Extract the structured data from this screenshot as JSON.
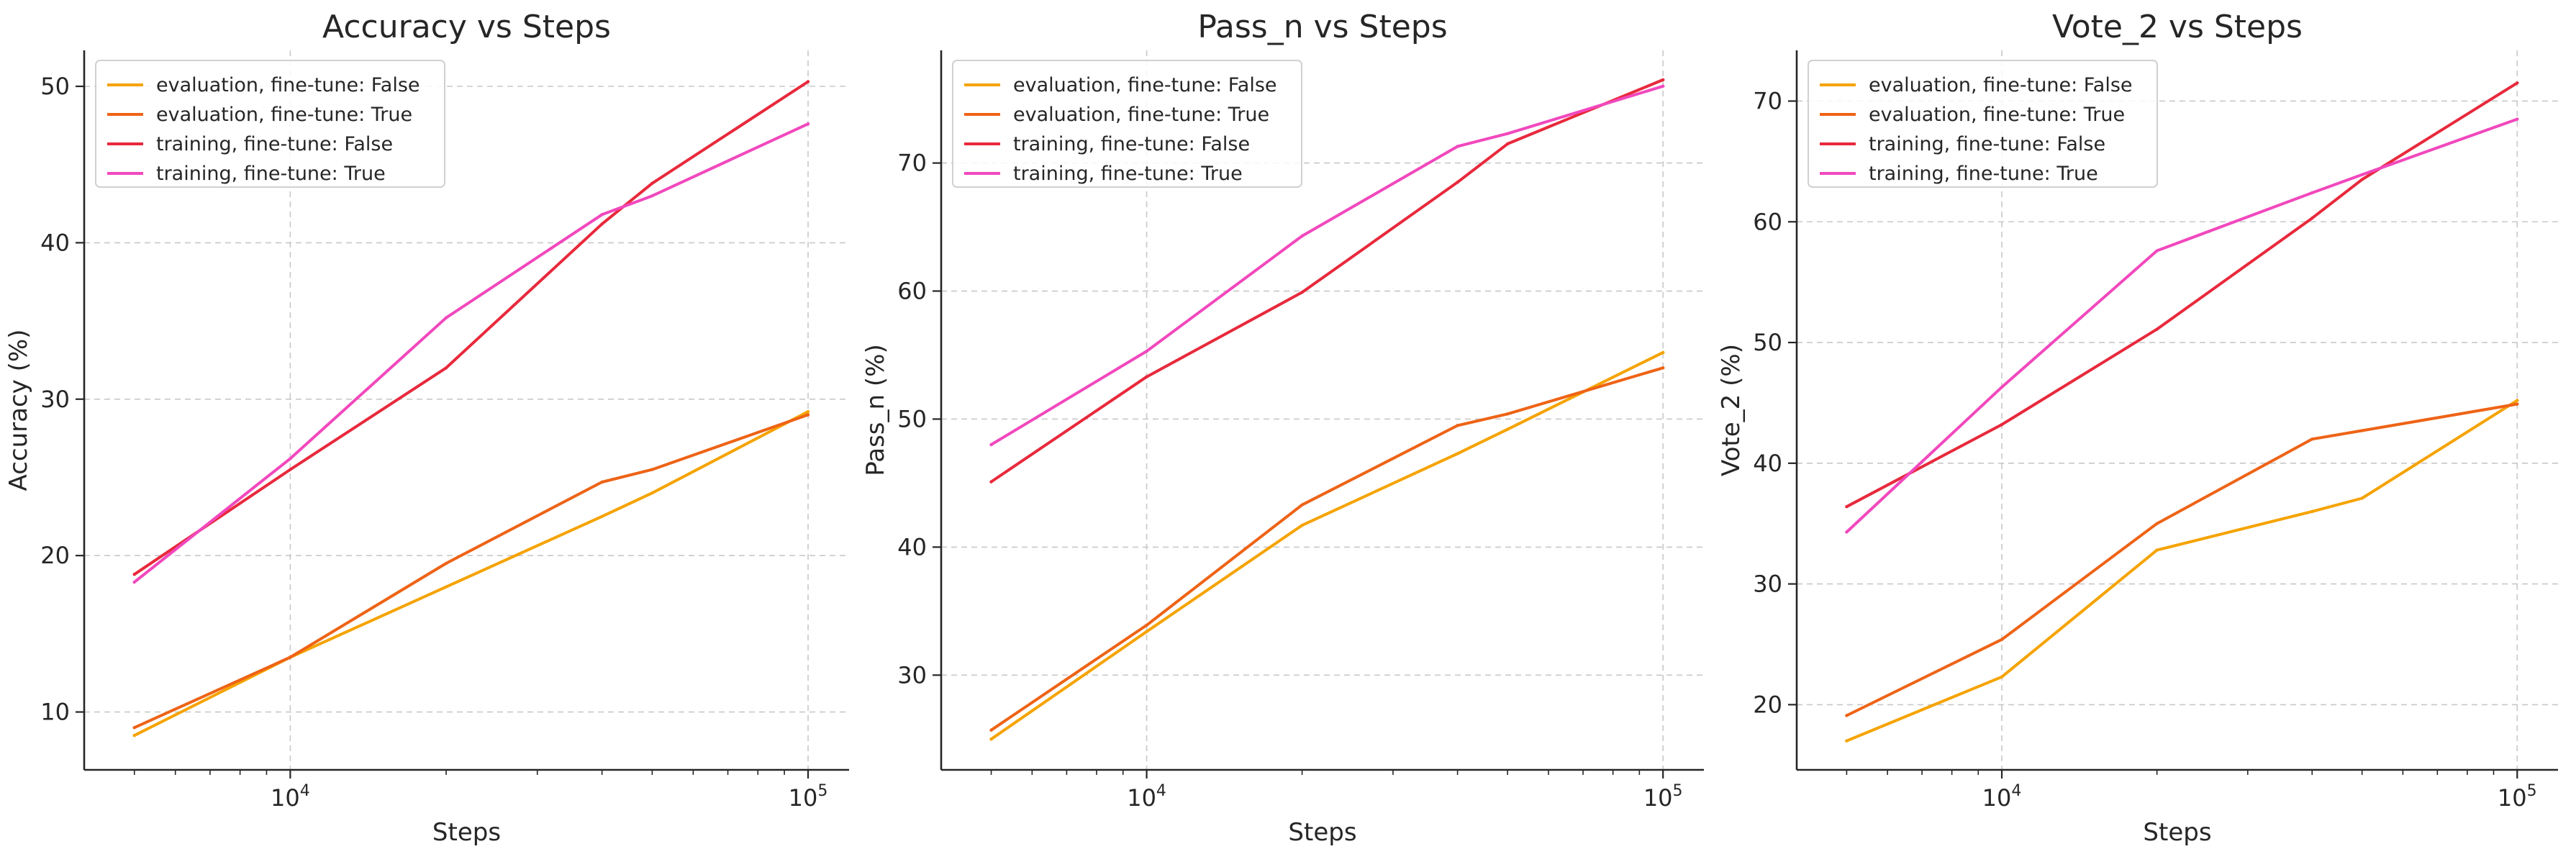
{
  "figure": {
    "background": "#ffffff"
  },
  "chart_data": [
    {
      "type": "line",
      "title": "Accuracy vs Steps",
      "xlabel": "Steps",
      "ylabel": "Accuracy (%)",
      "xscale": "log",
      "xlim": [
        4000,
        120000
      ],
      "ylim": [
        6.3,
        52.3
      ],
      "yticks": [
        10,
        20,
        30,
        40,
        50
      ],
      "xticks": [
        10000,
        100000
      ],
      "grid": true,
      "legend": "top-left",
      "x": [
        5000,
        10000,
        20000,
        40000,
        50000,
        100000
      ],
      "series": [
        {
          "name": "evaluation, fine-tune: False",
          "color": "#f5a300",
          "values": [
            8.5,
            13.5,
            18.0,
            22.5,
            24.0,
            29.2
          ]
        },
        {
          "name": "evaluation, fine-tune: True",
          "color": "#ee6316",
          "values": [
            9.0,
            13.5,
            19.5,
            24.7,
            25.5,
            29.0
          ]
        },
        {
          "name": "training, fine-tune: False",
          "color": "#e8293c",
          "values": [
            18.8,
            25.5,
            32.0,
            41.2,
            43.8,
            50.3
          ]
        },
        {
          "name": "training, fine-tune: True",
          "color": "#f148bd",
          "values": [
            18.3,
            26.2,
            35.2,
            41.8,
            43.0,
            47.6
          ]
        }
      ]
    },
    {
      "type": "line",
      "title": "Pass_n vs Steps",
      "xlabel": "Steps",
      "ylabel": "Pass_n (%)",
      "xscale": "log",
      "xlim": [
        4000,
        120000
      ],
      "ylim": [
        22.6,
        78.8
      ],
      "yticks": [
        30,
        40,
        50,
        60,
        70
      ],
      "xticks": [
        10000,
        100000
      ],
      "grid": true,
      "legend": "top-left",
      "x": [
        5000,
        10000,
        20000,
        40000,
        50000,
        100000
      ],
      "series": [
        {
          "name": "evaluation, fine-tune: False",
          "color": "#f5a300",
          "values": [
            25.0,
            33.4,
            41.7,
            47.3,
            49.2,
            55.2
          ]
        },
        {
          "name": "evaluation, fine-tune: True",
          "color": "#ee6316",
          "values": [
            25.7,
            33.9,
            43.3,
            49.5,
            50.4,
            54.0
          ]
        },
        {
          "name": "training, fine-tune: False",
          "color": "#e8293c",
          "values": [
            45.1,
            53.3,
            59.9,
            68.5,
            71.5,
            76.5
          ]
        },
        {
          "name": "training, fine-tune: True",
          "color": "#f148bd",
          "values": [
            48.0,
            55.3,
            64.3,
            71.3,
            72.3,
            76.0
          ]
        }
      ]
    },
    {
      "type": "line",
      "title": "Vote_2 vs Steps",
      "xlabel": "Steps",
      "ylabel": "Vote_2 (%)",
      "xscale": "log",
      "xlim": [
        4000,
        120000
      ],
      "ylim": [
        14.6,
        74.2
      ],
      "yticks": [
        20,
        30,
        40,
        50,
        60,
        70
      ],
      "xticks": [
        10000,
        100000
      ],
      "grid": true,
      "legend": "top-left",
      "x": [
        5000,
        10000,
        20000,
        40000,
        50000,
        100000
      ],
      "series": [
        {
          "name": "evaluation, fine-tune: False",
          "color": "#f5a300",
          "values": [
            17.0,
            22.3,
            32.8,
            36.0,
            37.1,
            45.2
          ]
        },
        {
          "name": "evaluation, fine-tune: True",
          "color": "#ee6316",
          "values": [
            19.1,
            25.4,
            35.0,
            42.0,
            42.7,
            44.9
          ]
        },
        {
          "name": "training, fine-tune: False",
          "color": "#e8293c",
          "values": [
            36.4,
            43.2,
            51.1,
            60.3,
            63.5,
            71.5
          ]
        },
        {
          "name": "training, fine-tune: True",
          "color": "#f148bd",
          "values": [
            34.3,
            46.3,
            57.6,
            62.4,
            63.9,
            68.5
          ]
        }
      ]
    }
  ]
}
